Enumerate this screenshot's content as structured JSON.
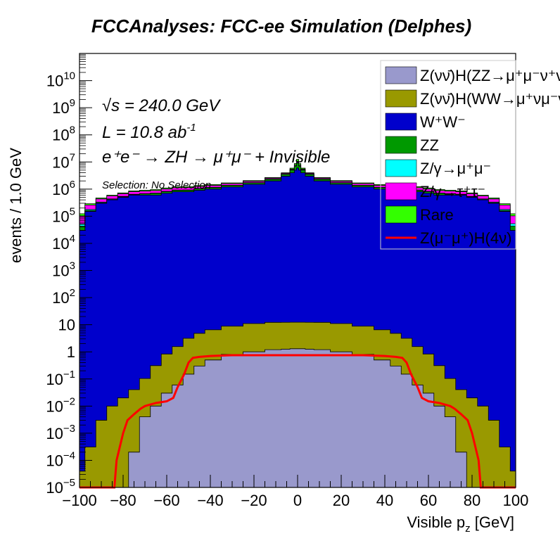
{
  "chart_data": {
    "type": "area",
    "title": "FCCAnalyses: FCC-ee Simulation (Delphes)",
    "xlabel": "Visible p",
    "xlabel_sub": "z",
    "xlabel_unit": "[GeV]",
    "ylabel": "events / 1.0 GeV",
    "xlim": [
      -100,
      100
    ],
    "ylim": [
      1e-05,
      100000000000.0
    ],
    "yscale": "log",
    "x_ticks": [
      -100,
      -80,
      -60,
      -40,
      -20,
      0,
      20,
      40,
      60,
      80,
      100
    ],
    "y_ticks": [
      {
        "v": 1e-05,
        "base": "10",
        "exp": "−5"
      },
      {
        "v": 0.0001,
        "base": "10",
        "exp": "−4"
      },
      {
        "v": 0.001,
        "base": "10",
        "exp": "−3"
      },
      {
        "v": 0.01,
        "base": "10",
        "exp": "−2"
      },
      {
        "v": 0.1,
        "base": "10",
        "exp": "−1"
      },
      {
        "v": 1,
        "base": "1",
        "exp": ""
      },
      {
        "v": 10,
        "base": "10",
        "exp": ""
      },
      {
        "v": 100,
        "base": "10",
        "exp": "2"
      },
      {
        "v": 1000,
        "base": "10",
        "exp": "3"
      },
      {
        "v": 10000.0,
        "base": "10",
        "exp": "4"
      },
      {
        "v": 100000.0,
        "base": "10",
        "exp": "5"
      },
      {
        "v": 1000000.0,
        "base": "10",
        "exp": "6"
      },
      {
        "v": 10000000.0,
        "base": "10",
        "exp": "7"
      },
      {
        "v": 100000000.0,
        "base": "10",
        "exp": "8"
      },
      {
        "v": 1000000000.0,
        "base": "10",
        "exp": "9"
      },
      {
        "v": 10000000000.0,
        "base": "10",
        "exp": "10"
      }
    ],
    "legend_position": "top-right",
    "stacked": true,
    "x": [
      -100,
      -95,
      -90,
      -85,
      -80,
      -75,
      -70,
      -65,
      -60,
      -55,
      -50,
      -45,
      -40,
      -30,
      -20,
      -10,
      -5,
      -2,
      -1,
      0,
      1,
      2,
      5,
      10,
      20,
      30,
      40,
      45,
      50,
      55,
      60,
      65,
      70,
      75,
      80,
      85,
      90,
      95,
      100
    ],
    "series": [
      {
        "name": "Z(νν̄)H(ZZ→μ⁺μ⁻ν⁺ν⁻)",
        "color": "#9999cc",
        "values": [
          1e-05,
          1e-05,
          1e-05,
          1e-05,
          1e-05,
          0.0002,
          0.004,
          0.01,
          0.03,
          0.06,
          0.15,
          0.3,
          0.5,
          0.8,
          1.0,
          1.2,
          1.25,
          1.3,
          1.3,
          1.3,
          1.3,
          1.3,
          1.25,
          1.2,
          1.0,
          0.8,
          0.5,
          0.3,
          0.15,
          0.06,
          0.03,
          0.01,
          0.004,
          0.0002,
          1e-05,
          1e-05,
          1e-05,
          1e-05,
          1e-05
        ]
      },
      {
        "name": "Z(νν̄)H(WW→μ⁺νμ⁻ν)",
        "color": "#999900",
        "values": [
          3e-05,
          0.0003,
          0.003,
          0.01,
          0.02,
          0.04,
          0.1,
          0.3,
          0.8,
          1.5,
          3,
          4.5,
          6,
          8,
          10,
          11,
          11,
          11,
          11,
          11,
          11,
          11,
          11,
          11,
          10,
          8,
          6,
          4.5,
          3,
          1.5,
          0.8,
          0.3,
          0.1,
          0.04,
          0.02,
          0.01,
          0.003,
          0.0003,
          3e-05
        ]
      },
      {
        "name": "W⁺W⁻",
        "color": "#0000cc",
        "values": [
          30000.0,
          150000.0,
          300000.0,
          400000.0,
          500000.0,
          600000.0,
          600000.0,
          600000.0,
          700000.0,
          800000.0,
          800000.0,
          900000.0,
          1000000.0,
          1200000.0,
          1500000.0,
          2000000.0,
          3000000.0,
          4000000.0,
          5000000.0,
          6000000.0,
          5000000.0,
          4000000.0,
          3000000.0,
          2000000.0,
          1500000.0,
          1200000.0,
          1000000.0,
          900000.0,
          800000.0,
          800000.0,
          700000.0,
          600000.0,
          600000.0,
          600000.0,
          500000.0,
          400000.0,
          300000.0,
          150000.0,
          30000.0
        ]
      },
      {
        "name": "ZZ",
        "color": "#009900",
        "values": [
          13000.0,
          13000.0,
          15000.0,
          16000.0,
          20000.0,
          25000.0,
          60000.0,
          90000.0,
          100000.0,
          100000.0,
          100000.0,
          120000.0,
          130000.0,
          150000.0,
          200000.0,
          300000.0,
          500000.0,
          1000000.0,
          2000000.0,
          3000000.0,
          2000000.0,
          1000000.0,
          500000.0,
          300000.0,
          200000.0,
          150000.0,
          130000.0,
          120000.0,
          100000.0,
          100000.0,
          100000.0,
          90000.0,
          60000.0,
          25000.0,
          20000.0,
          16000.0,
          15000.0,
          13000.0,
          13000.0
        ]
      },
      {
        "name": "Z/γ→μ⁺μ⁻",
        "color": "#00ffff",
        "values": [
          10000.0,
          15000.0,
          18000.0,
          20000.0,
          20000.0,
          20000.0,
          20000.0,
          20000.0,
          25000.0,
          25000.0,
          30000.0,
          30000.0,
          30000.0,
          30000.0,
          30000.0,
          40000.0,
          50000.0,
          100000.0,
          200000.0,
          500000.0,
          200000.0,
          100000.0,
          50000.0,
          40000.0,
          30000.0,
          30000.0,
          30000.0,
          30000.0,
          30000.0,
          25000.0,
          25000.0,
          20000.0,
          20000.0,
          20000.0,
          20000.0,
          20000.0,
          18000.0,
          15000.0,
          10000.0
        ]
      },
      {
        "name": "Z/γ→τ⁺τ⁻",
        "color": "#ff00ff",
        "values": [
          50000.0,
          80000.0,
          100000.0,
          120000.0,
          130000.0,
          150000.0,
          160000.0,
          170000.0,
          180000.0,
          200000.0,
          200000.0,
          200000.0,
          200000.0,
          200000.0,
          200000.0,
          200000.0,
          250000.0,
          300000.0,
          500000.0,
          1000000.0,
          500000.0,
          300000.0,
          250000.0,
          200000.0,
          200000.0,
          200000.0,
          200000.0,
          200000.0,
          200000.0,
          200000.0,
          180000.0,
          170000.0,
          160000.0,
          150000.0,
          130000.0,
          120000.0,
          100000.0,
          80000.0,
          50000.0
        ]
      },
      {
        "name": "Rare",
        "color": "#33ff00",
        "values": [
          20000.0,
          30000.0,
          40000.0,
          40000.0,
          50000.0,
          60000.0,
          70000.0,
          80000.0,
          90000.0,
          100000.0,
          100000.0,
          100000.0,
          110000.0,
          110000.0,
          120000.0,
          130000.0,
          200000.0,
          500000.0,
          1000000.0,
          2000000.0,
          1000000.0,
          500000.0,
          200000.0,
          130000.0,
          120000.0,
          110000.0,
          110000.0,
          100000.0,
          100000.0,
          100000.0,
          90000.0,
          80000.0,
          70000.0,
          60000.0,
          50000.0,
          40000.0,
          40000.0,
          30000.0,
          20000.0
        ]
      }
    ],
    "signal": {
      "name": "Z(μ⁻μ⁺)H(4ν)",
      "color": "#ff0000",
      "x": [
        -100,
        -84,
        -83,
        -80,
        -78,
        -75,
        -72,
        -70,
        -65,
        -60,
        -57,
        -55,
        -52,
        -50,
        -48,
        -45,
        -40,
        -30,
        -20,
        -10,
        0,
        10,
        20,
        30,
        40,
        45,
        48,
        50,
        52,
        55,
        57,
        60,
        65,
        70,
        72,
        75,
        78,
        80,
        83,
        84,
        100
      ],
      "values": [
        1e-05,
        1e-05,
        0.0001,
        0.001,
        0.003,
        0.005,
        0.008,
        0.01,
        0.013,
        0.015,
        0.02,
        0.05,
        0.15,
        0.4,
        0.6,
        0.65,
        0.7,
        0.75,
        0.75,
        0.75,
        0.75,
        0.75,
        0.75,
        0.75,
        0.7,
        0.65,
        0.6,
        0.4,
        0.15,
        0.05,
        0.02,
        0.015,
        0.013,
        0.01,
        0.008,
        0.005,
        0.003,
        0.001,
        0.0001,
        1e-05,
        1e-05
      ]
    },
    "annotations": {
      "sqrt_s": "√s = 240.0 GeV",
      "lumi": "L = 10.8 ab",
      "lumi_exp": "-1",
      "process": "e⁺e⁻ → ZH → μ⁺μ⁻ + Invisible",
      "selection": "Selection: No Selection"
    }
  }
}
